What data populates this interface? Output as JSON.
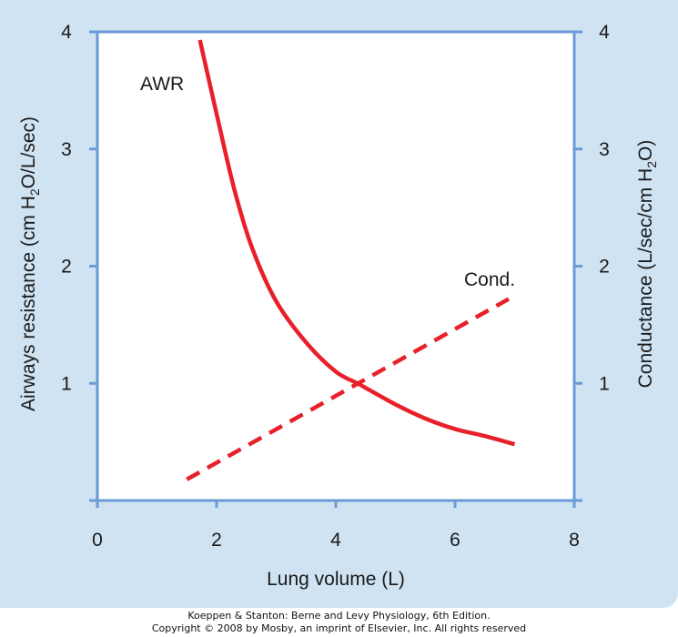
{
  "chart_data": {
    "type": "line",
    "xlabel": "Lung volume (L)",
    "ylabel_left": {
      "base": "Airways resistance (cm H",
      "sub": "2",
      "tail": "O/L/sec)"
    },
    "ylabel_right": {
      "base": "Conductance (L/sec/cm H",
      "sub": "2",
      "tail": "O)"
    },
    "xlim": [
      0,
      8
    ],
    "ylim": [
      0,
      4
    ],
    "x_ticks": [
      "0",
      "2",
      "4",
      "6",
      "8"
    ],
    "y_ticks": [
      "1",
      "2",
      "3",
      "4"
    ],
    "series": [
      {
        "name": "AWR",
        "style": "solid",
        "color": "#e8202a",
        "points": [
          [
            1.72,
            3.93
          ],
          [
            2.0,
            3.3
          ],
          [
            2.3,
            2.65
          ],
          [
            2.6,
            2.15
          ],
          [
            3.0,
            1.7
          ],
          [
            3.5,
            1.35
          ],
          [
            4.0,
            1.1
          ],
          [
            4.4,
            0.99
          ],
          [
            5.0,
            0.82
          ],
          [
            5.5,
            0.7
          ],
          [
            6.0,
            0.61
          ],
          [
            6.5,
            0.55
          ],
          [
            7.0,
            0.48
          ]
        ]
      },
      {
        "name": "Cond.",
        "style": "dashed",
        "color": "#e8202a",
        "points": [
          [
            1.5,
            0.18
          ],
          [
            6.9,
            1.72
          ]
        ]
      }
    ]
  },
  "colors": {
    "panel_bg": "#cfe3f3",
    "axis_frame": "#6b9ad4",
    "plot_bg": "#ffffff",
    "line": "#e8202a"
  },
  "credit": {
    "line1": "Koeppen & Stanton: Berne and Levy Physiology, 6th Edition.",
    "line2": "Copyright © 2008 by Mosby, an imprint of Elsevier, Inc. All rights reserved"
  }
}
